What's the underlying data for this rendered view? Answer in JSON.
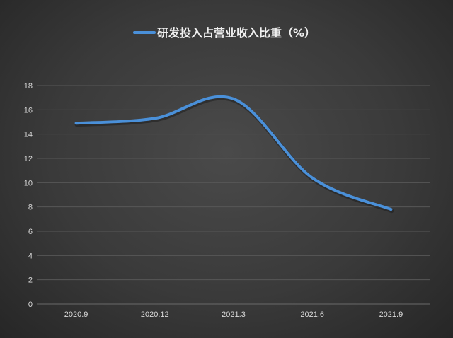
{
  "chart_data": {
    "type": "line",
    "title": "",
    "xlabel": "",
    "ylabel": "",
    "categories": [
      "2020.9",
      "2020.12",
      "2021.3",
      "2021.6",
      "2021.9"
    ],
    "series": [
      {
        "name": "研发投入占营业收入比重（%）",
        "values": [
          14.9,
          15.3,
          16.9,
          10.4,
          7.8
        ],
        "color": "#4a90d9",
        "smooth": true
      }
    ],
    "ylim": [
      0,
      18
    ],
    "yticks": [
      0,
      2,
      4,
      6,
      8,
      10,
      12,
      14,
      16,
      18
    ],
    "grid": true,
    "legend": "top",
    "background": "#3a3a3a"
  }
}
